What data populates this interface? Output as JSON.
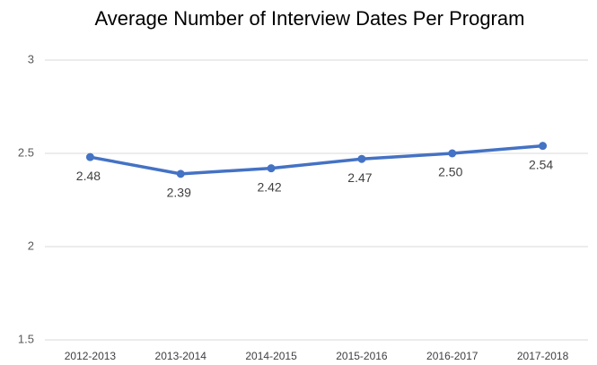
{
  "chart_data": {
    "type": "line",
    "title": "Average Number of Interview Dates Per Program",
    "categories": [
      "2012-2013",
      "2013-2014",
      "2014-2015",
      "2015-2016",
      "2016-2017",
      "2017-2018"
    ],
    "series": [
      {
        "name": "Average Number of Interview Dates Per Program",
        "color": "#4472c4",
        "values": [
          2.48,
          2.39,
          2.42,
          2.47,
          2.5,
          2.54
        ],
        "value_labels": [
          "2.48",
          "2.39",
          "2.42",
          "2.47",
          "2.50",
          "2.54"
        ]
      }
    ],
    "ylim": [
      1.5,
      3
    ],
    "yticks": [
      1.5,
      2,
      2.5,
      3
    ],
    "grid": true,
    "legend": false
  }
}
